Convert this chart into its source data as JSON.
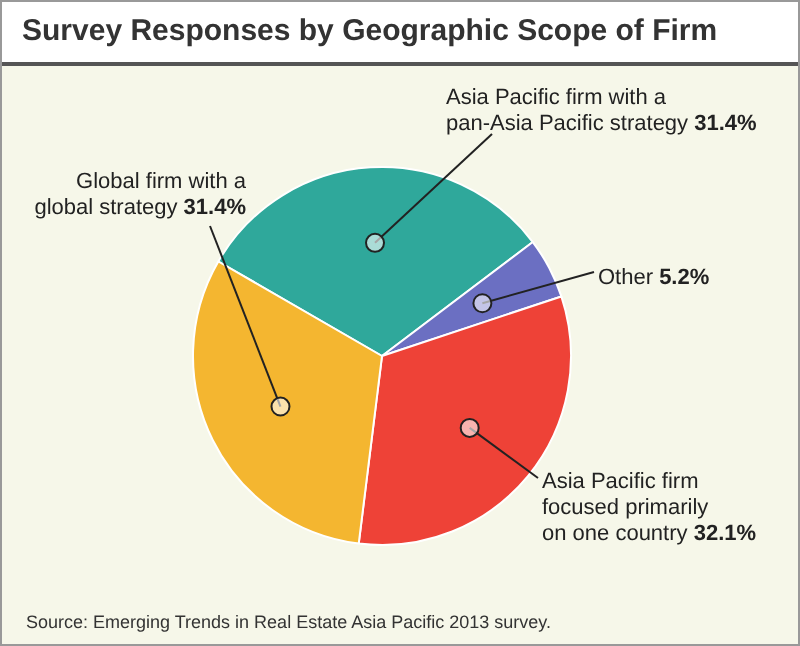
{
  "chart_data": {
    "type": "pie",
    "title": "Survey Responses by Geographic Scope of Firm",
    "categories": [
      "Asia Pacific firm with a pan-Asia Pacific strategy",
      "Other",
      "Asia Pacific firm focused primarily on one country",
      "Global firm with a global strategy"
    ],
    "values": [
      31.4,
      5.2,
      32.1,
      31.4
    ],
    "value_labels": [
      "31.4%",
      "5.2%",
      "32.1%",
      "31.4%"
    ],
    "colors": [
      "#2fa89b",
      "#6b6fc2",
      "#ee4237",
      "#f4b630"
    ],
    "annotations": [
      "Source: Emerging Trends in Real Estate Asia Pacific 2013 survey."
    ],
    "legend": false
  }
}
